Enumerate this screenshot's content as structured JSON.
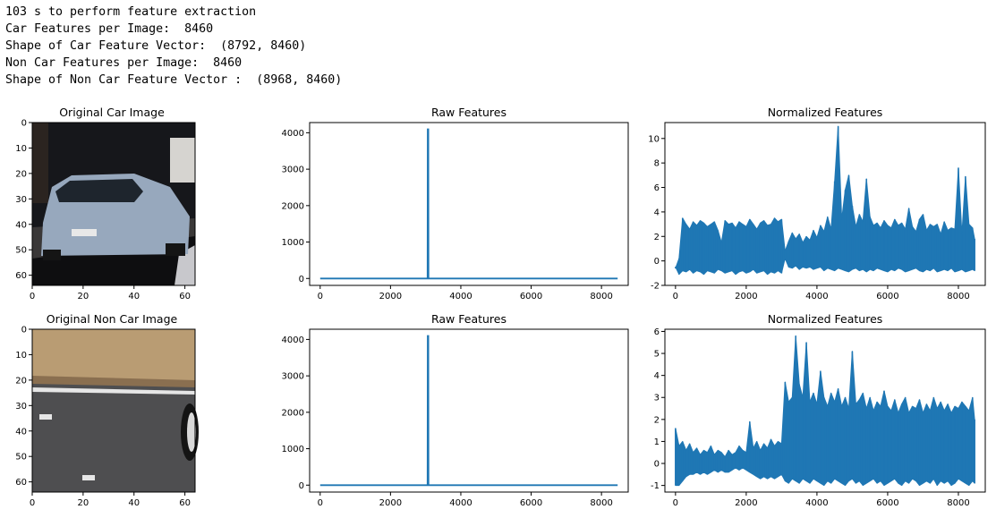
{
  "console": {
    "lines": [
      "103 s to perform feature extraction",
      "Car Features per Image:  8460",
      "Shape of Car Feature Vector:  (8792, 8460)",
      "Non Car Features per Image:  8460",
      "Shape of Non Car Feature Vector :  (8968, 8460)"
    ]
  },
  "colors": {
    "series": "#1f77b4",
    "car_sky": "#16171b",
    "car_body": "#97a8bd",
    "car_window": "#1e252d",
    "car_road": "#3a3838",
    "car_shadow": "#0e0e10",
    "grass": "#b99c73",
    "asphalt": "#4e4e50",
    "lane_line": "#e6e6e6",
    "tire": "#141414"
  },
  "chart_data": [
    {
      "type": "image",
      "title": "Original Car Image",
      "xlim": [
        0,
        64
      ],
      "ylim": [
        64,
        0
      ],
      "xticks": [
        0,
        20,
        40,
        60
      ],
      "yticks": [
        0,
        10,
        20,
        30,
        40,
        50,
        60
      ]
    },
    {
      "type": "line",
      "title": "Raw Features",
      "xlim": [
        -300,
        8760
      ],
      "ylim": [
        -190,
        4280
      ],
      "xticks": [
        0,
        2000,
        4000,
        6000,
        8000
      ],
      "yticks": [
        0,
        1000,
        2000,
        3000,
        4000
      ],
      "x": [
        0,
        3055,
        3060,
        3065,
        3070,
        3075,
        3080,
        8460
      ],
      "y": [
        0,
        0,
        4096,
        4096,
        4096,
        4096,
        0,
        0
      ]
    },
    {
      "type": "line",
      "title": "Normalized Features",
      "xlim": [
        -300,
        8760
      ],
      "ylim": [
        -2,
        11.3
      ],
      "xticks": [
        0,
        2000,
        4000,
        6000,
        8000
      ],
      "yticks": [
        -2,
        0,
        2,
        4,
        6,
        8,
        10
      ],
      "x": [
        0,
        100,
        200,
        300,
        400,
        500,
        600,
        700,
        800,
        900,
        1000,
        1100,
        1200,
        1300,
        1400,
        1500,
        1600,
        1700,
        1800,
        1900,
        2000,
        2100,
        2200,
        2300,
        2400,
        2500,
        2600,
        2700,
        2800,
        2900,
        3000,
        3100,
        3200,
        3300,
        3400,
        3500,
        3600,
        3700,
        3800,
        3900,
        4000,
        4100,
        4200,
        4300,
        4400,
        4500,
        4600,
        4700,
        4800,
        4900,
        5000,
        5100,
        5200,
        5300,
        5400,
        5500,
        5600,
        5700,
        5800,
        5900,
        6000,
        6100,
        6200,
        6300,
        6400,
        6500,
        6600,
        6700,
        6800,
        6900,
        7000,
        7100,
        7200,
        7300,
        7400,
        7500,
        7600,
        7700,
        7800,
        7900,
        8000,
        8100,
        8200,
        8300,
        8400,
        8460
      ],
      "y": [
        -0.6,
        0.2,
        3.5,
        3.0,
        2.6,
        3.2,
        2.9,
        3.3,
        3.1,
        2.8,
        3.0,
        3.2,
        2.5,
        1.5,
        3.3,
        3.0,
        3.1,
        2.7,
        3.2,
        3.0,
        2.8,
        3.4,
        3.0,
        2.6,
        3.1,
        3.3,
        2.9,
        3.0,
        3.5,
        3.2,
        3.4,
        0.8,
        1.6,
        2.3,
        1.8,
        2.2,
        1.5,
        2.0,
        1.7,
        2.5,
        1.9,
        2.9,
        2.4,
        3.6,
        2.6,
        6.5,
        11.0,
        3.4,
        5.8,
        7.0,
        4.5,
        2.8,
        3.8,
        3.2,
        6.7,
        3.6,
        2.9,
        3.1,
        2.7,
        3.3,
        2.9,
        2.7,
        3.4,
        2.9,
        3.1,
        2.6,
        4.3,
        2.8,
        2.4,
        3.4,
        3.8,
        2.5,
        3.0,
        2.8,
        3.0,
        2.2,
        3.2,
        2.5,
        2.7,
        2.6,
        7.6,
        2.2,
        6.9,
        3.0,
        2.7,
        1.8
      ],
      "y_low": [
        -0.5,
        -1.1,
        -0.8,
        -0.9,
        -0.7,
        -1.0,
        -0.8,
        -0.9,
        -1.1,
        -0.8,
        -0.9,
        -1.0,
        -0.7,
        -0.8,
        -1.0,
        -0.9,
        -0.8,
        -1.1,
        -0.9,
        -0.8,
        -1.0,
        -0.9,
        -0.7,
        -1.0,
        -0.9,
        -0.8,
        -1.1,
        -0.9,
        -1.0,
        -0.8,
        -1.0,
        0.2,
        -0.5,
        -0.6,
        -0.4,
        -0.7,
        -0.5,
        -0.6,
        -0.5,
        -0.7,
        -0.6,
        -0.5,
        -0.8,
        -0.6,
        -0.7,
        -0.8,
        -0.6,
        -0.7,
        -0.8,
        -0.9,
        -0.7,
        -0.6,
        -0.8,
        -0.7,
        -0.9,
        -0.7,
        -0.8,
        -0.6,
        -0.7,
        -0.8,
        -0.9,
        -0.7,
        -0.8,
        -0.6,
        -0.7,
        -0.9,
        -0.8,
        -0.7,
        -0.6,
        -0.8,
        -0.9,
        -0.7,
        -0.8,
        -0.6,
        -0.9,
        -0.8,
        -0.7,
        -0.8,
        -0.6,
        -0.9,
        -0.8,
        -0.7,
        -0.9,
        -0.8,
        -0.7,
        -0.8
      ]
    },
    {
      "type": "image",
      "title": "Original Non Car Image",
      "xlim": [
        0,
        64
      ],
      "ylim": [
        64,
        0
      ],
      "xticks": [
        0,
        20,
        40,
        60
      ],
      "yticks": [
        0,
        10,
        20,
        30,
        40,
        50,
        60
      ]
    },
    {
      "type": "line",
      "title": "Raw Features",
      "xlim": [
        -300,
        8760
      ],
      "ylim": [
        -190,
        4280
      ],
      "xticks": [
        0,
        2000,
        4000,
        6000,
        8000
      ],
      "yticks": [
        0,
        1000,
        2000,
        3000,
        4000
      ],
      "x": [
        0,
        3055,
        3060,
        3065,
        3070,
        3075,
        3080,
        8460
      ],
      "y": [
        0,
        0,
        4096,
        4096,
        4096,
        4096,
        0,
        0
      ]
    },
    {
      "type": "line",
      "title": "Normalized Features",
      "xlim": [
        -300,
        8760
      ],
      "ylim": [
        -1.3,
        6.1
      ],
      "xticks": [
        0,
        2000,
        4000,
        6000,
        8000
      ],
      "yticks": [
        -1,
        0,
        1,
        2,
        3,
        4,
        5,
        6
      ],
      "x": [
        0,
        100,
        200,
        300,
        400,
        500,
        600,
        700,
        800,
        900,
        1000,
        1100,
        1200,
        1300,
        1400,
        1500,
        1600,
        1700,
        1800,
        1900,
        2000,
        2100,
        2200,
        2300,
        2400,
        2500,
        2600,
        2700,
        2800,
        2900,
        3000,
        3100,
        3200,
        3300,
        3400,
        3500,
        3600,
        3700,
        3800,
        3900,
        4000,
        4100,
        4200,
        4300,
        4400,
        4500,
        4600,
        4700,
        4800,
        4900,
        5000,
        5100,
        5200,
        5300,
        5400,
        5500,
        5600,
        5700,
        5800,
        5900,
        6000,
        6100,
        6200,
        6300,
        6400,
        6500,
        6600,
        6700,
        6800,
        6900,
        7000,
        7100,
        7200,
        7300,
        7400,
        7500,
        7600,
        7700,
        7800,
        7900,
        8000,
        8100,
        8200,
        8300,
        8400,
        8460
      ],
      "y": [
        1.6,
        0.8,
        1.0,
        0.6,
        0.9,
        0.5,
        0.7,
        0.4,
        0.6,
        0.5,
        0.8,
        0.4,
        0.6,
        0.5,
        0.3,
        0.6,
        0.4,
        0.5,
        0.8,
        0.6,
        0.5,
        1.9,
        0.7,
        1.0,
        0.6,
        0.9,
        0.7,
        1.1,
        0.8,
        1.0,
        0.9,
        3.7,
        2.8,
        3.0,
        5.8,
        3.6,
        3.0,
        5.5,
        2.8,
        3.2,
        2.7,
        4.2,
        3.0,
        2.6,
        3.2,
        2.8,
        3.4,
        2.6,
        3.0,
        2.5,
        5.1,
        2.7,
        2.9,
        3.2,
        2.5,
        3.0,
        2.4,
        2.8,
        2.6,
        3.3,
        2.6,
        2.4,
        2.9,
        2.3,
        2.7,
        3.0,
        2.3,
        2.6,
        2.5,
        2.9,
        2.3,
        2.7,
        2.4,
        3.0,
        2.5,
        2.8,
        2.4,
        2.7,
        2.3,
        2.6,
        2.5,
        2.8,
        2.6,
        2.4,
        3.0,
        2.0
      ],
      "y_low": [
        -1.0,
        -1.0,
        -0.8,
        -0.6,
        -0.5,
        -0.5,
        -0.4,
        -0.5,
        -0.4,
        -0.5,
        -0.4,
        -0.3,
        -0.4,
        -0.3,
        -0.4,
        -0.4,
        -0.3,
        -0.2,
        -0.3,
        -0.2,
        -0.3,
        -0.4,
        -0.5,
        -0.6,
        -0.7,
        -0.6,
        -0.7,
        -0.6,
        -0.7,
        -0.6,
        -0.5,
        -0.8,
        -0.9,
        -0.7,
        -0.8,
        -0.9,
        -0.7,
        -0.8,
        -0.9,
        -0.7,
        -0.8,
        -0.9,
        -1.0,
        -0.8,
        -0.9,
        -0.7,
        -0.8,
        -0.9,
        -1.0,
        -0.8,
        -0.7,
        -0.9,
        -0.8,
        -1.0,
        -0.9,
        -0.8,
        -0.7,
        -0.9,
        -0.8,
        -1.0,
        -0.9,
        -0.8,
        -0.7,
        -0.9,
        -1.0,
        -0.8,
        -0.9,
        -0.7,
        -0.8,
        -1.0,
        -0.9,
        -0.8,
        -0.9,
        -0.7,
        -1.0,
        -0.8,
        -0.9,
        -0.8,
        -1.0,
        -0.9,
        -0.7,
        -0.8,
        -0.9,
        -1.0,
        -0.8,
        -0.9
      ]
    }
  ]
}
